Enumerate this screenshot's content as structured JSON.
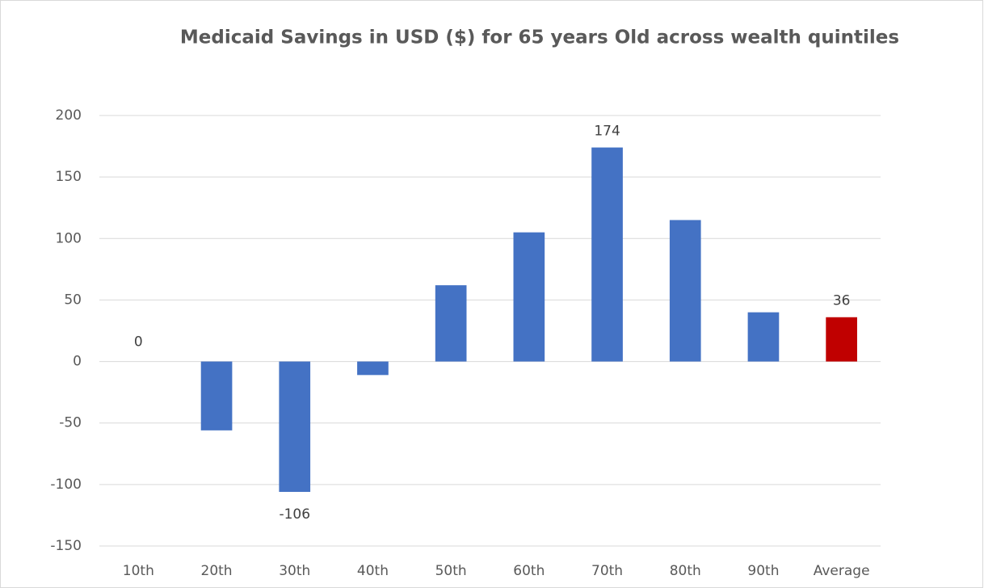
{
  "chart_data": {
    "type": "bar",
    "title": "Medicaid Savings in USD ($) for 65 years Old across wealth quintiles",
    "categories": [
      "10th",
      "20th",
      "30th",
      "40th",
      "50th",
      "60th",
      "70th",
      "80th",
      "90th",
      "Average"
    ],
    "values": [
      0,
      -56,
      -106,
      -11,
      62,
      105,
      174,
      115,
      40,
      36
    ],
    "value_labels": [
      "0",
      null,
      "-106",
      null,
      null,
      null,
      "174",
      null,
      null,
      "36"
    ],
    "colors": [
      "#4472c4",
      "#4472c4",
      "#4472c4",
      "#4472c4",
      "#4472c4",
      "#4472c4",
      "#4472c4",
      "#4472c4",
      "#4472c4",
      "#c00000"
    ],
    "ylim": [
      -150,
      200
    ],
    "yticks": [
      -150,
      -100,
      -50,
      0,
      50,
      100,
      150,
      200
    ],
    "grid": true
  }
}
